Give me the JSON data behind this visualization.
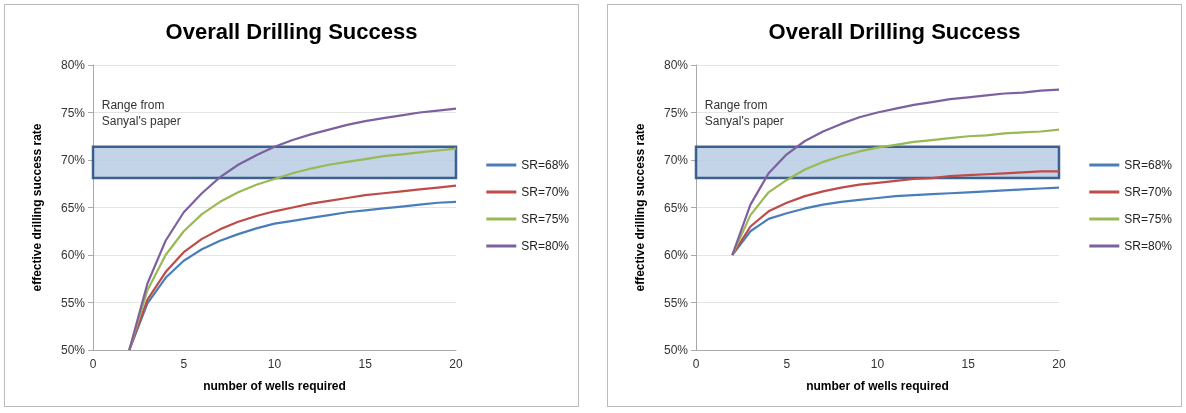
{
  "chart_data": [
    {
      "type": "line",
      "title": "Overall Drilling Success",
      "xlabel": "number of wells required",
      "ylabel": "effective drilling success rate",
      "x": [
        2,
        3,
        4,
        5,
        6,
        7,
        8,
        9,
        10,
        11,
        12,
        13,
        14,
        15,
        16,
        17,
        18,
        19,
        20
      ],
      "series": [
        {
          "name": "SR=68%",
          "color": "#4a7ebb",
          "values": [
            50,
            54.9,
            57.6,
            59.4,
            60.6,
            61.5,
            62.2,
            62.8,
            63.3,
            63.6,
            63.9,
            64.2,
            64.5,
            64.7,
            64.9,
            65.1,
            65.3,
            65.5,
            65.6
          ]
        },
        {
          "name": "SR=70%",
          "color": "#be4b48",
          "values": [
            50,
            55.3,
            58.2,
            60.3,
            61.7,
            62.7,
            63.5,
            64.1,
            64.6,
            65.0,
            65.4,
            65.7,
            66.0,
            66.3,
            66.5,
            66.7,
            66.9,
            67.1,
            67.3
          ]
        },
        {
          "name": "SR=75%",
          "color": "#98b954",
          "values": [
            50,
            56.3,
            60,
            62.5,
            64.3,
            65.6,
            66.6,
            67.4,
            68.0,
            68.6,
            69.1,
            69.5,
            69.8,
            70.1,
            70.4,
            70.6,
            70.8,
            71.0,
            71.2
          ]
        },
        {
          "name": "SR=80%",
          "color": "#7d60a0",
          "values": [
            50,
            57,
            61.5,
            64.5,
            66.5,
            68.2,
            69.5,
            70.5,
            71.4,
            72.1,
            72.7,
            73.2,
            73.7,
            74.1,
            74.4,
            74.7,
            75.0,
            75.2,
            75.4
          ]
        }
      ],
      "bands": [
        {
          "axis": "y",
          "from": 68.1,
          "to": 71.4,
          "label": "Range from Sanyal's paper",
          "color": "#b9cde5"
        }
      ],
      "xlim": [
        0,
        20
      ],
      "xticks": [
        0,
        5,
        10,
        15,
        20
      ],
      "ylim": [
        50,
        80
      ],
      "yticks": [
        {
          "value": 50,
          "label": "50%"
        },
        {
          "value": 55,
          "label": "55%"
        },
        {
          "value": 60,
          "label": "60%"
        },
        {
          "value": 65,
          "label": "65%"
        },
        {
          "value": 70,
          "label": "70%"
        },
        {
          "value": 75,
          "label": "75%"
        },
        {
          "value": 80,
          "label": "80%"
        }
      ],
      "grid": "y",
      "legend": "right",
      "marker": "none",
      "line_style": "solid"
    },
    {
      "type": "line",
      "title": "Overall Drilling Success",
      "xlabel": "number of wells required",
      "ylabel": "effective drilling success rate",
      "x": [
        2,
        3,
        4,
        5,
        6,
        7,
        8,
        9,
        10,
        11,
        12,
        13,
        14,
        15,
        16,
        17,
        18,
        19,
        20
      ],
      "series": [
        {
          "name": "SR=68%",
          "color": "#4a7ebb",
          "values": [
            60,
            62.5,
            63.8,
            64.4,
            64.9,
            65.3,
            65.6,
            65.8,
            66.0,
            66.2,
            66.3,
            66.4,
            66.5,
            66.6,
            66.7,
            66.8,
            66.9,
            67.0,
            67.1
          ]
        },
        {
          "name": "SR=70%",
          "color": "#be4b48",
          "values": [
            60,
            63.0,
            64.6,
            65.5,
            66.2,
            66.7,
            67.1,
            67.4,
            67.6,
            67.8,
            68.0,
            68.1,
            68.3,
            68.4,
            68.5,
            68.6,
            68.7,
            68.8,
            68.8
          ]
        },
        {
          "name": "SR=75%",
          "color": "#98b954",
          "values": [
            60,
            64.2,
            66.6,
            67.9,
            69.0,
            69.8,
            70.4,
            70.9,
            71.3,
            71.6,
            71.9,
            72.1,
            72.3,
            72.5,
            72.6,
            72.8,
            72.9,
            73.0,
            73.2
          ]
        },
        {
          "name": "SR=80%",
          "color": "#7d60a0",
          "values": [
            60,
            65.3,
            68.6,
            70.6,
            72.0,
            73.0,
            73.8,
            74.5,
            75.0,
            75.4,
            75.8,
            76.1,
            76.4,
            76.6,
            76.8,
            77.0,
            77.1,
            77.3,
            77.4
          ]
        }
      ],
      "bands": [
        {
          "axis": "y",
          "from": 68.1,
          "to": 71.4,
          "label": "Range from Sanyal's paper",
          "color": "#b9cde5"
        }
      ],
      "xlim": [
        0,
        20
      ],
      "xticks": [
        0,
        5,
        10,
        15,
        20
      ],
      "ylim": [
        50,
        80
      ],
      "yticks": [
        {
          "value": 50,
          "label": "50%"
        },
        {
          "value": 55,
          "label": "55%"
        },
        {
          "value": 60,
          "label": "60%"
        },
        {
          "value": 65,
          "label": "65%"
        },
        {
          "value": 70,
          "label": "70%"
        },
        {
          "value": 75,
          "label": "75%"
        },
        {
          "value": 80,
          "label": "80%"
        }
      ],
      "grid": "y",
      "legend": "right",
      "marker": "none",
      "line_style": "solid"
    }
  ]
}
